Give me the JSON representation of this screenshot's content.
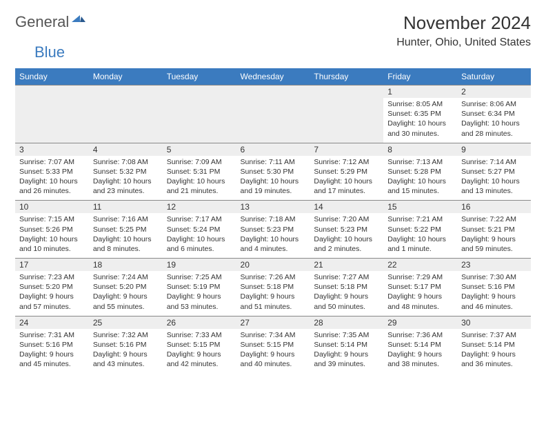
{
  "logo": {
    "word1": "General",
    "word2": "Blue"
  },
  "title": "November 2024",
  "location": "Hunter, Ohio, United States",
  "colors": {
    "header_bg": "#3b7bbf",
    "header_fg": "#ffffff",
    "spacer_bg": "#eeeeee",
    "border": "#888888",
    "text": "#333333"
  },
  "day_names": [
    "Sunday",
    "Monday",
    "Tuesday",
    "Wednesday",
    "Thursday",
    "Friday",
    "Saturday"
  ],
  "weeks": [
    [
      null,
      null,
      null,
      null,
      null,
      {
        "n": "1",
        "sunrise": "8:05 AM",
        "sunset": "6:35 PM",
        "daylight": "10 hours and 30 minutes."
      },
      {
        "n": "2",
        "sunrise": "8:06 AM",
        "sunset": "6:34 PM",
        "daylight": "10 hours and 28 minutes."
      }
    ],
    [
      {
        "n": "3",
        "sunrise": "7:07 AM",
        "sunset": "5:33 PM",
        "daylight": "10 hours and 26 minutes."
      },
      {
        "n": "4",
        "sunrise": "7:08 AM",
        "sunset": "5:32 PM",
        "daylight": "10 hours and 23 minutes."
      },
      {
        "n": "5",
        "sunrise": "7:09 AM",
        "sunset": "5:31 PM",
        "daylight": "10 hours and 21 minutes."
      },
      {
        "n": "6",
        "sunrise": "7:11 AM",
        "sunset": "5:30 PM",
        "daylight": "10 hours and 19 minutes."
      },
      {
        "n": "7",
        "sunrise": "7:12 AM",
        "sunset": "5:29 PM",
        "daylight": "10 hours and 17 minutes."
      },
      {
        "n": "8",
        "sunrise": "7:13 AM",
        "sunset": "5:28 PM",
        "daylight": "10 hours and 15 minutes."
      },
      {
        "n": "9",
        "sunrise": "7:14 AM",
        "sunset": "5:27 PM",
        "daylight": "10 hours and 13 minutes."
      }
    ],
    [
      {
        "n": "10",
        "sunrise": "7:15 AM",
        "sunset": "5:26 PM",
        "daylight": "10 hours and 10 minutes."
      },
      {
        "n": "11",
        "sunrise": "7:16 AM",
        "sunset": "5:25 PM",
        "daylight": "10 hours and 8 minutes."
      },
      {
        "n": "12",
        "sunrise": "7:17 AM",
        "sunset": "5:24 PM",
        "daylight": "10 hours and 6 minutes."
      },
      {
        "n": "13",
        "sunrise": "7:18 AM",
        "sunset": "5:23 PM",
        "daylight": "10 hours and 4 minutes."
      },
      {
        "n": "14",
        "sunrise": "7:20 AM",
        "sunset": "5:23 PM",
        "daylight": "10 hours and 2 minutes."
      },
      {
        "n": "15",
        "sunrise": "7:21 AM",
        "sunset": "5:22 PM",
        "daylight": "10 hours and 1 minute."
      },
      {
        "n": "16",
        "sunrise": "7:22 AM",
        "sunset": "5:21 PM",
        "daylight": "9 hours and 59 minutes."
      }
    ],
    [
      {
        "n": "17",
        "sunrise": "7:23 AM",
        "sunset": "5:20 PM",
        "daylight": "9 hours and 57 minutes."
      },
      {
        "n": "18",
        "sunrise": "7:24 AM",
        "sunset": "5:20 PM",
        "daylight": "9 hours and 55 minutes."
      },
      {
        "n": "19",
        "sunrise": "7:25 AM",
        "sunset": "5:19 PM",
        "daylight": "9 hours and 53 minutes."
      },
      {
        "n": "20",
        "sunrise": "7:26 AM",
        "sunset": "5:18 PM",
        "daylight": "9 hours and 51 minutes."
      },
      {
        "n": "21",
        "sunrise": "7:27 AM",
        "sunset": "5:18 PM",
        "daylight": "9 hours and 50 minutes."
      },
      {
        "n": "22",
        "sunrise": "7:29 AM",
        "sunset": "5:17 PM",
        "daylight": "9 hours and 48 minutes."
      },
      {
        "n": "23",
        "sunrise": "7:30 AM",
        "sunset": "5:16 PM",
        "daylight": "9 hours and 46 minutes."
      }
    ],
    [
      {
        "n": "24",
        "sunrise": "7:31 AM",
        "sunset": "5:16 PM",
        "daylight": "9 hours and 45 minutes."
      },
      {
        "n": "25",
        "sunrise": "7:32 AM",
        "sunset": "5:16 PM",
        "daylight": "9 hours and 43 minutes."
      },
      {
        "n": "26",
        "sunrise": "7:33 AM",
        "sunset": "5:15 PM",
        "daylight": "9 hours and 42 minutes."
      },
      {
        "n": "27",
        "sunrise": "7:34 AM",
        "sunset": "5:15 PM",
        "daylight": "9 hours and 40 minutes."
      },
      {
        "n": "28",
        "sunrise": "7:35 AM",
        "sunset": "5:14 PM",
        "daylight": "9 hours and 39 minutes."
      },
      {
        "n": "29",
        "sunrise": "7:36 AM",
        "sunset": "5:14 PM",
        "daylight": "9 hours and 38 minutes."
      },
      {
        "n": "30",
        "sunrise": "7:37 AM",
        "sunset": "5:14 PM",
        "daylight": "9 hours and 36 minutes."
      }
    ]
  ],
  "labels": {
    "sunrise": "Sunrise:",
    "sunset": "Sunset:",
    "daylight": "Daylight:"
  }
}
